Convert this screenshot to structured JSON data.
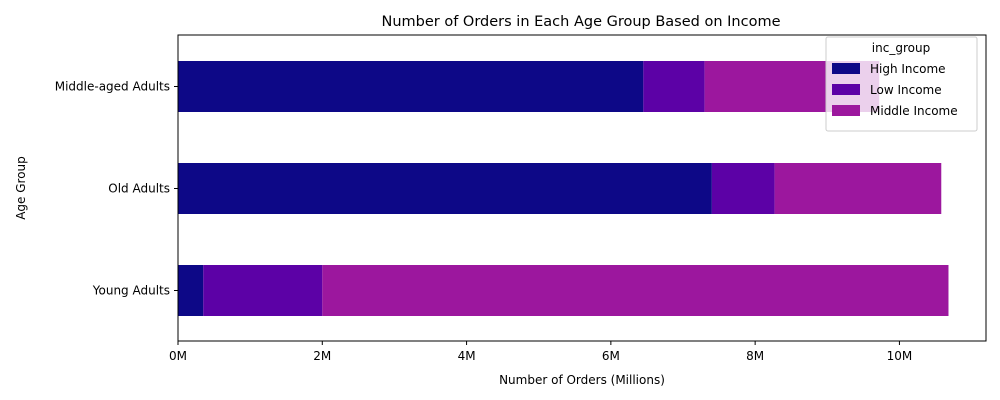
{
  "chart_data": {
    "type": "bar",
    "orientation": "horizontal",
    "stacked": true,
    "title": "Number of Orders in Each Age Group Based on Income",
    "xlabel": "Number of Orders (Millions)",
    "ylabel": "Age Group",
    "categories": [
      "Young Adults",
      "Old Adults",
      "Middle-aged Adults"
    ],
    "series": [
      {
        "name": "High Income",
        "color": "#0d0887",
        "values": [
          0.35,
          7.4,
          6.45
        ]
      },
      {
        "name": "Low Income",
        "color": "#5c01a6",
        "values": [
          1.65,
          0.87,
          0.85
        ]
      },
      {
        "name": "Middle Income",
        "color": "#9c179e",
        "values": [
          8.68,
          2.31,
          2.42
        ]
      }
    ],
    "xlim": [
      0,
      11.2
    ],
    "xticks": [
      0,
      2,
      4,
      6,
      8,
      10
    ],
    "xtick_labels": [
      "0M",
      "2M",
      "4M",
      "6M",
      "8M",
      "10M"
    ],
    "legend": {
      "title": "inc_group",
      "position": "top-right"
    },
    "grid": false
  }
}
